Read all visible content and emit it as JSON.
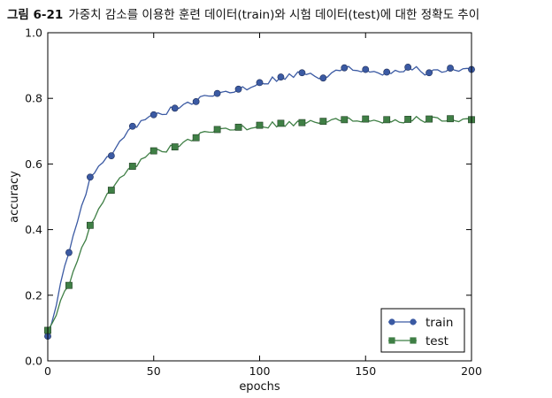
{
  "caption": {
    "figure_number": "그림 6-21",
    "text": "가중치 감소를 이용한 훈련 데이터(train)와 시험 데이터(test)에 대한 정확도 추이"
  },
  "colors": {
    "train": "#3b5aa3",
    "test": "#3f7f45",
    "axes": "#000000"
  },
  "chart_data": {
    "type": "line",
    "title": "",
    "xlabel": "epochs",
    "ylabel": "accuracy",
    "xlim": [
      0,
      200
    ],
    "ylim": [
      0.0,
      1.0
    ],
    "xticks": [
      0,
      50,
      100,
      150,
      200
    ],
    "xtick_labels": [
      "0",
      "50",
      "100",
      "150",
      "200"
    ],
    "yticks": [
      0.0,
      0.2,
      0.4,
      0.6,
      0.8,
      1.0
    ],
    "ytick_labels": [
      "0.0",
      "0.2",
      "0.4",
      "0.6",
      "0.8",
      "1.0"
    ],
    "grid": false,
    "legend_position": "lower-right",
    "marker_x": [
      0,
      10,
      20,
      30,
      40,
      50,
      60,
      70,
      80,
      90,
      100,
      110,
      120,
      130,
      140,
      150,
      160,
      170,
      180,
      190,
      200
    ],
    "series": [
      {
        "name": "train",
        "marker": "circle",
        "values": [
          0.075,
          0.33,
          0.56,
          0.625,
          0.715,
          0.75,
          0.77,
          0.79,
          0.815,
          0.828,
          0.848,
          0.865,
          0.878,
          0.862,
          0.893,
          0.888,
          0.88,
          0.895,
          0.878,
          0.892,
          0.888
        ]
      },
      {
        "name": "test",
        "marker": "square",
        "values": [
          0.093,
          0.23,
          0.413,
          0.52,
          0.593,
          0.64,
          0.652,
          0.68,
          0.705,
          0.712,
          0.718,
          0.724,
          0.726,
          0.73,
          0.735,
          0.737,
          0.735,
          0.736,
          0.737,
          0.738,
          0.735
        ]
      }
    ]
  }
}
